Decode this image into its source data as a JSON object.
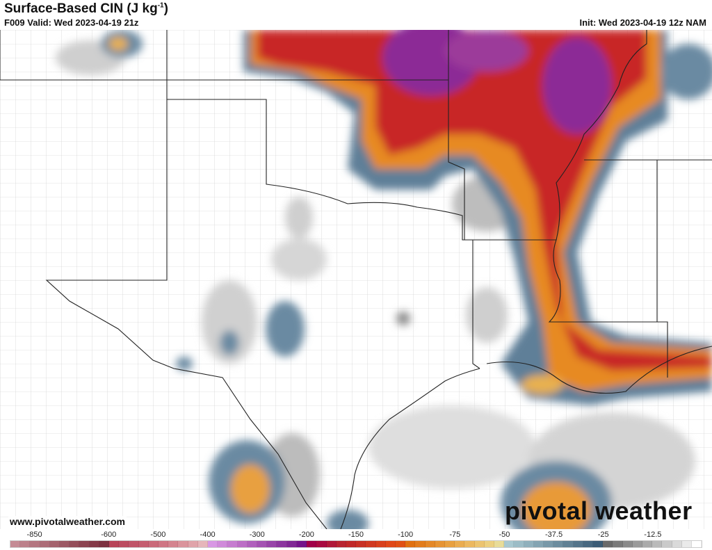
{
  "header": {
    "title": "Surface-Based CIN (J kg",
    "title_sup": "-1",
    "title_end": ")",
    "valid": "F009 Valid: Wed 2023-04-19 21z",
    "init": "Init: Wed 2023-04-19 12z NAM"
  },
  "footer": {
    "url": "www.pivotalweather.com",
    "logo": "pivotal weather"
  },
  "colorbar": {
    "labels": [
      "-850",
      "-600",
      "-500",
      "-400",
      "-300",
      "-200",
      "-150",
      "-100",
      "-75",
      "-50",
      "-37.5",
      "-25",
      "-12.5"
    ],
    "colors": [
      "#c48a94",
      "#bc808a",
      "#b47680",
      "#ac6c77",
      "#a4626d",
      "#9c5864",
      "#944e5a",
      "#8c4451",
      "#843a48",
      "#7c303f",
      "#b84458",
      "#bc4c60",
      "#c05468",
      "#c55e70",
      "#ca6a7a",
      "#cf7684",
      "#d4848f",
      "#da949c",
      "#e0a4aa",
      "#e6b6ba",
      "#d898e4",
      "#d08ada",
      "#c67cd0",
      "#bc6ec6",
      "#b060bc",
      "#a452b2",
      "#9844a8",
      "#8c369e",
      "#802894",
      "#74148a",
      "#a00048",
      "#a80a40",
      "#b01838",
      "#b82430",
      "#c02828",
      "#c83024",
      "#d03820",
      "#d8401c",
      "#e04818",
      "#e05014",
      "#e07010",
      "#e27c1c",
      "#e48828",
      "#e69434",
      "#e8a040",
      "#eaac50",
      "#ecb860",
      "#ecc470",
      "#ecd080",
      "#e8dc98",
      "#a8c8d0",
      "#9cbcc6",
      "#90b0bc",
      "#84a4b2",
      "#7898a8",
      "#6c8c9e",
      "#608094",
      "#54748a",
      "#486880",
      "#3c5c76",
      "#6a6a6a",
      "#7a7a7a",
      "#8a8a8a",
      "#9a9a9a",
      "#aaaaaa",
      "#bababa",
      "#cacaca",
      "#dadada",
      "#eaeaea",
      "#ffffff"
    ]
  }
}
